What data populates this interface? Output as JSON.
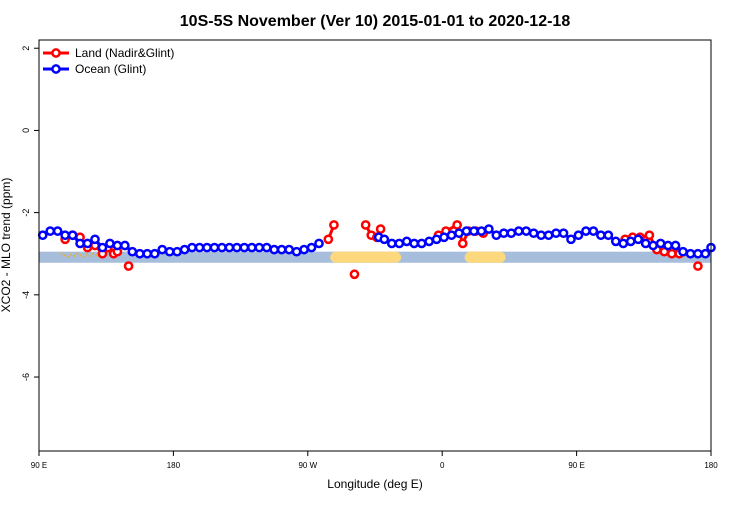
{
  "chart_data": {
    "type": "line",
    "title": "10S-5S November (Ver 10)   2015-01-01 to 2020-12-18",
    "xlabel": "Longitude (deg E)",
    "ylabel": "XCO2 - MLO trend (ppm)",
    "xlim": [
      90,
      450
    ],
    "ylim": [
      -7.8,
      2.2
    ],
    "x_ticks": [
      {
        "value": 90,
        "label": "90 E"
      },
      {
        "value": 162,
        "label": "180"
      },
      {
        "value": 234,
        "label": "90 W"
      },
      {
        "value": 306,
        "label": "0"
      },
      {
        "value": 378,
        "label": "90 E"
      },
      {
        "value": 450,
        "label": "180"
      }
    ],
    "y_ticks": [
      {
        "value": 2,
        "label": "2"
      },
      {
        "value": 0,
        "label": "0"
      },
      {
        "value": -2,
        "label": "-2"
      },
      {
        "value": -4,
        "label": "-4"
      },
      {
        "value": -6,
        "label": "-6"
      }
    ],
    "grid": false,
    "legend_position": "top-left",
    "series": [
      {
        "name": "Land (Nadir&Glint)",
        "color": "#ff0000",
        "segments": [
          [
            [
              104,
              -2.65
            ],
            [
              108,
              -2.55
            ],
            [
              112,
              -2.6
            ],
            [
              116,
              -2.85
            ],
            [
              120,
              -2.8
            ],
            [
              124,
              -3.0
            ],
            [
              127,
              -2.85
            ],
            [
              130,
              -3.0
            ],
            [
              132,
              -2.95
            ]
          ],
          [
            [
              138,
              -3.3
            ]
          ],
          [
            [
              245,
              -2.65
            ],
            [
              248,
              -2.3
            ]
          ],
          [
            [
              259,
              -3.5
            ]
          ],
          [
            [
              265,
              -2.3
            ],
            [
              268,
              -2.55
            ],
            [
              271,
              -2.6
            ],
            [
              273,
              -2.4
            ]
          ],
          [
            [
              304,
              -2.55
            ],
            [
              308,
              -2.45
            ],
            [
              314,
              -2.3
            ],
            [
              317,
              -2.75
            ],
            [
              320,
              -2.45
            ],
            [
              324,
              -2.45
            ],
            [
              328,
              -2.5
            ]
          ],
          [
            [
              404,
              -2.65
            ],
            [
              408,
              -2.6
            ],
            [
              412,
              -2.6
            ],
            [
              417,
              -2.55
            ],
            [
              421,
              -2.9
            ],
            [
              425,
              -2.95
            ],
            [
              429,
              -3.0
            ],
            [
              433,
              -3.0
            ]
          ],
          [
            [
              443,
              -3.3
            ]
          ]
        ]
      },
      {
        "name": "Ocean (Glint)",
        "color": "#0000ff",
        "segments": [
          [
            [
              92,
              -2.55
            ],
            [
              96,
              -2.45
            ],
            [
              100,
              -2.45
            ],
            [
              104,
              -2.55
            ],
            [
              108,
              -2.55
            ],
            [
              112,
              -2.75
            ],
            [
              116,
              -2.75
            ],
            [
              120,
              -2.65
            ],
            [
              124,
              -2.85
            ],
            [
              128,
              -2.75
            ],
            [
              132,
              -2.8
            ],
            [
              136,
              -2.8
            ],
            [
              140,
              -2.95
            ],
            [
              144,
              -3.0
            ],
            [
              148,
              -3.0
            ],
            [
              152,
              -3.0
            ],
            [
              156,
              -2.9
            ],
            [
              160,
              -2.95
            ],
            [
              164,
              -2.95
            ],
            [
              168,
              -2.9
            ],
            [
              172,
              -2.85
            ],
            [
              176,
              -2.85
            ],
            [
              180,
              -2.85
            ],
            [
              184,
              -2.85
            ],
            [
              188,
              -2.85
            ],
            [
              192,
              -2.85
            ],
            [
              196,
              -2.85
            ],
            [
              200,
              -2.85
            ],
            [
              204,
              -2.85
            ],
            [
              208,
              -2.85
            ],
            [
              212,
              -2.85
            ],
            [
              216,
              -2.9
            ],
            [
              220,
              -2.9
            ],
            [
              224,
              -2.9
            ],
            [
              228,
              -2.95
            ],
            [
              232,
              -2.9
            ],
            [
              236,
              -2.85
            ],
            [
              240,
              -2.75
            ]
          ],
          [
            [
              272,
              -2.6
            ],
            [
              275,
              -2.65
            ],
            [
              279,
              -2.75
            ],
            [
              283,
              -2.75
            ],
            [
              287,
              -2.7
            ],
            [
              291,
              -2.75
            ],
            [
              295,
              -2.75
            ],
            [
              299,
              -2.7
            ],
            [
              303,
              -2.65
            ],
            [
              307,
              -2.6
            ],
            [
              311,
              -2.55
            ],
            [
              315,
              -2.5
            ],
            [
              319,
              -2.45
            ],
            [
              323,
              -2.45
            ],
            [
              327,
              -2.45
            ],
            [
              331,
              -2.4
            ],
            [
              335,
              -2.55
            ],
            [
              339,
              -2.5
            ],
            [
              343,
              -2.5
            ],
            [
              347,
              -2.45
            ],
            [
              351,
              -2.45
            ],
            [
              355,
              -2.5
            ],
            [
              359,
              -2.55
            ],
            [
              363,
              -2.55
            ],
            [
              367,
              -2.5
            ],
            [
              371,
              -2.5
            ],
            [
              375,
              -2.65
            ],
            [
              379,
              -2.55
            ],
            [
              383,
              -2.45
            ],
            [
              387,
              -2.45
            ],
            [
              391,
              -2.55
            ],
            [
              395,
              -2.55
            ],
            [
              399,
              -2.7
            ],
            [
              403,
              -2.75
            ],
            [
              407,
              -2.7
            ],
            [
              411,
              -2.65
            ],
            [
              415,
              -2.75
            ],
            [
              419,
              -2.8
            ],
            [
              423,
              -2.75
            ],
            [
              427,
              -2.8
            ],
            [
              431,
              -2.8
            ],
            [
              435,
              -2.95
            ],
            [
              439,
              -3.0
            ],
            [
              443,
              -3.0
            ],
            [
              447,
              -3.0
            ],
            [
              450,
              -2.85
            ]
          ]
        ]
      }
    ],
    "background_band": {
      "y_range": [
        -3.22,
        -2.95
      ],
      "ocean_color": "#a6bddb",
      "land_color": "#fdd87d",
      "land_spans": [
        [
          246,
          284
        ],
        [
          318,
          340
        ]
      ],
      "land_dots": [
        [
          102,
          124
        ],
        [
          426,
          440
        ]
      ]
    }
  }
}
